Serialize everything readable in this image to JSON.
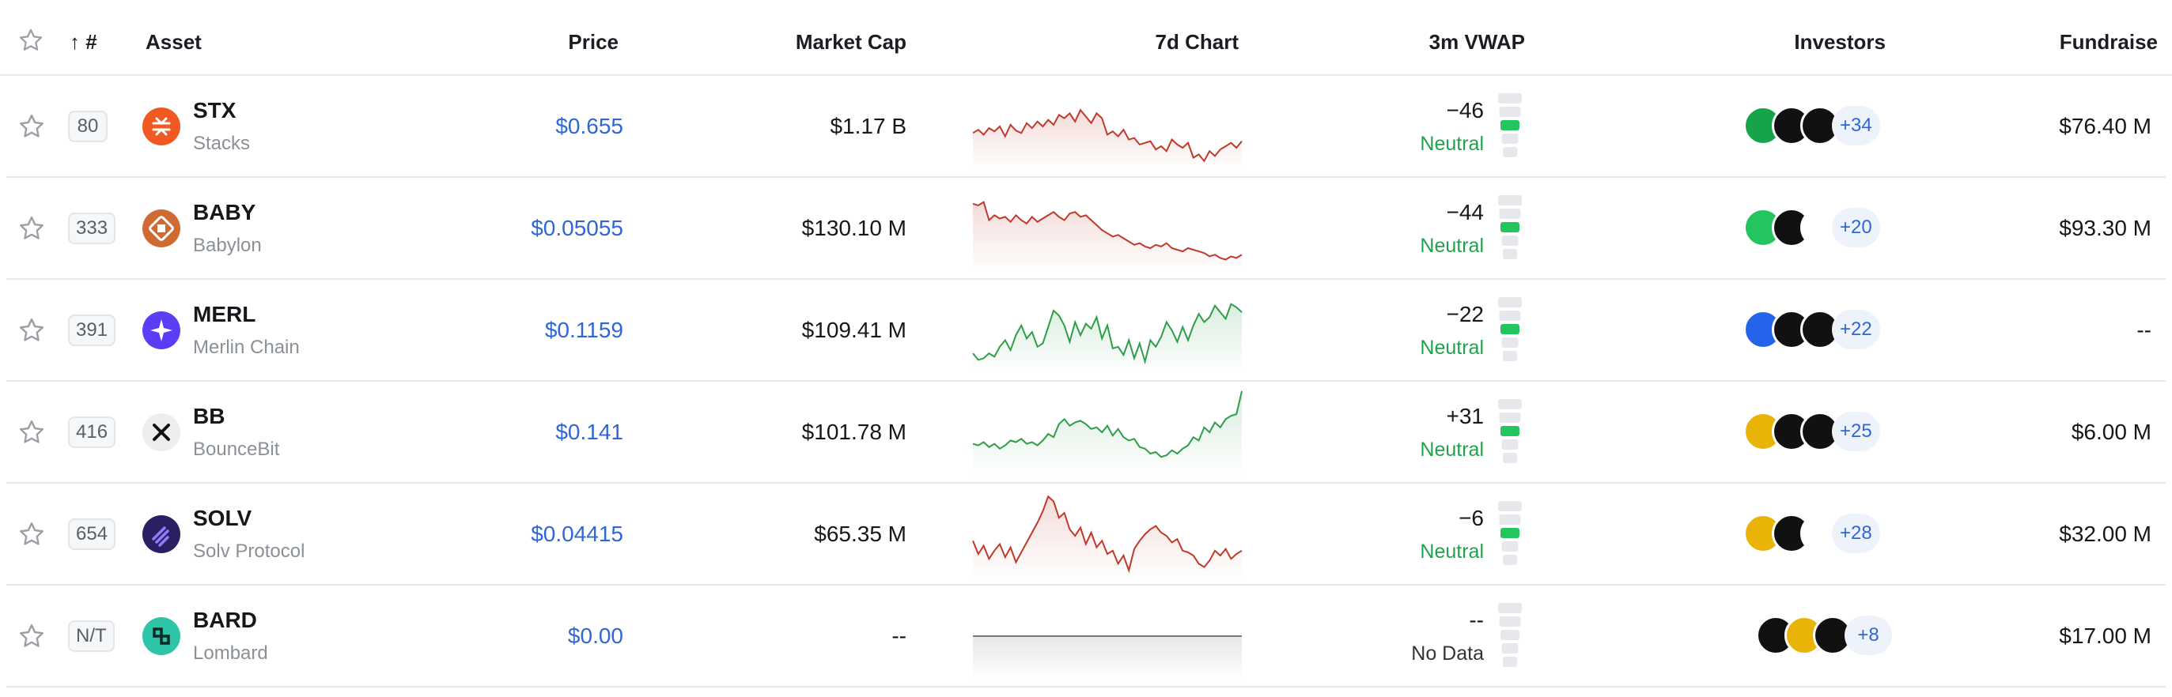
{
  "header": {
    "sort_label": "↑ #",
    "asset": "Asset",
    "price": "Price",
    "market_cap": "Market Cap",
    "chart": "7d Chart",
    "vwap": "3m VWAP",
    "investors": "Investors",
    "fundraise": "Fundraise"
  },
  "colors": {
    "price_link": "#2f66d8",
    "negative_line": "#c0392b",
    "positive_line": "#2e9e4a",
    "neutral_text": "#1fa34a",
    "bar_active": "#22c55e",
    "bar_inactive": "#e6e8eb"
  },
  "rows": [
    {
      "rank": "80",
      "symbol": "STX",
      "name": "Stacks",
      "icon": "stacks-logo",
      "logo_color": "#f05a22",
      "price": "$0.655",
      "market_cap": "$1.17 B",
      "vwap": "−46",
      "vwap_label": "Neutral",
      "vwap_level": 0.4,
      "investors_more": "+34",
      "fundraise": "$76.40 M",
      "trend": "down",
      "chart": [
        58,
        54,
        60,
        52,
        56,
        50,
        62,
        48,
        55,
        58,
        46,
        52,
        44,
        50,
        42,
        48,
        36,
        40,
        34,
        44,
        30,
        38,
        46,
        34,
        40,
        60,
        56,
        62,
        54,
        66,
        64,
        72,
        70,
        68,
        78,
        74,
        80,
        66,
        72,
        76,
        70,
        88,
        84,
        92,
        80,
        86,
        78,
        74,
        70,
        76,
        68
      ]
    },
    {
      "rank": "333",
      "symbol": "BABY",
      "name": "Babylon",
      "icon": "babylon-logo",
      "logo_color": "#cf6a33",
      "price": "$0.05055",
      "market_cap": "$130.10 M",
      "vwap": "−44",
      "vwap_label": "Neutral",
      "vwap_level": 0.4,
      "investors_more": "+20",
      "fundraise": "$93.30 M",
      "trend": "down",
      "chart": [
        20,
        22,
        18,
        40,
        34,
        38,
        36,
        42,
        34,
        40,
        44,
        36,
        42,
        38,
        34,
        30,
        36,
        40,
        32,
        30,
        36,
        34,
        40,
        46,
        52,
        56,
        60,
        58,
        62,
        66,
        70,
        68,
        72,
        74,
        70,
        72,
        68,
        74,
        76,
        78,
        74,
        76,
        78,
        80,
        84,
        82,
        86,
        88,
        84,
        86,
        82
      ]
    },
    {
      "rank": "391",
      "symbol": "MERL",
      "name": "Merlin Chain",
      "icon": "merlin-logo",
      "logo_color": "#5b3df5",
      "price": "$0.1159",
      "market_cap": "$109.41 M",
      "vwap": "−22",
      "vwap_label": "Neutral",
      "vwap_level": 0.4,
      "investors_more": "+22",
      "fundraise": "--",
      "trend": "up",
      "chart": [
        78,
        86,
        84,
        78,
        82,
        70,
        62,
        74,
        56,
        44,
        60,
        52,
        70,
        66,
        46,
        26,
        32,
        44,
        64,
        40,
        56,
        42,
        48,
        34,
        60,
        44,
        72,
        70,
        80,
        62,
        84,
        66,
        88,
        62,
        70,
        58,
        40,
        50,
        64,
        46,
        62,
        44,
        30,
        40,
        34,
        20,
        28,
        36,
        18,
        22,
        28
      ]
    },
    {
      "rank": "416",
      "symbol": "BB",
      "name": "BounceBit",
      "icon": "bouncebit-logo",
      "logo_color": "#eeeeee",
      "price": "$0.141",
      "market_cap": "$101.78 M",
      "vwap": "+31",
      "vwap_label": "Neutral",
      "vwap_level": 0.4,
      "investors_more": "+25",
      "fundraise": "$6.00 M",
      "trend": "up",
      "chart": [
        64,
        66,
        62,
        68,
        64,
        70,
        66,
        60,
        62,
        58,
        64,
        62,
        66,
        60,
        52,
        56,
        40,
        34,
        42,
        38,
        36,
        40,
        46,
        44,
        50,
        42,
        54,
        46,
        56,
        60,
        58,
        68,
        70,
        76,
        74,
        80,
        78,
        72,
        76,
        70,
        66,
        56,
        60,
        44,
        50,
        38,
        44,
        34,
        30,
        28,
        0
      ]
    },
    {
      "rank": "654",
      "symbol": "SOLV",
      "name": "Solv Protocol",
      "icon": "solv-logo",
      "logo_color": "#2a1f63",
      "price": "$0.04415",
      "market_cap": "$65.35 M",
      "vwap": "−6",
      "vwap_label": "Neutral",
      "vwap_level": 0.4,
      "investors_more": "+28",
      "fundraise": "$32.00 M",
      "trend": "down",
      "chart": [
        58,
        74,
        64,
        80,
        70,
        62,
        78,
        66,
        84,
        72,
        60,
        48,
        36,
        22,
        4,
        10,
        30,
        24,
        44,
        52,
        42,
        62,
        48,
        66,
        58,
        74,
        70,
        86,
        76,
        94,
        68,
        58,
        50,
        44,
        40,
        48,
        52,
        60,
        56,
        70,
        72,
        76,
        86,
        90,
        82,
        70,
        76,
        68,
        80,
        74,
        70
      ]
    },
    {
      "rank": "N/T",
      "symbol": "BARD",
      "name": "Lombard",
      "icon": "lombard-logo",
      "logo_color": "#2ec4a8",
      "price": "$0.00",
      "market_cap": "--",
      "vwap": "--",
      "vwap_label": "No Data",
      "vwap_level": 0,
      "investors_more": "+8",
      "fundraise": "$17.00 M",
      "trend": "flat",
      "chart": [
        50,
        50,
        50,
        50,
        50,
        50,
        50,
        50,
        50,
        50,
        50,
        50,
        50,
        50,
        50,
        50,
        50,
        50,
        50,
        50,
        50,
        50,
        50,
        50,
        50,
        50,
        50,
        50,
        50,
        50,
        50,
        50,
        50,
        50,
        50,
        50,
        50,
        50,
        50,
        50,
        50,
        50,
        50,
        50,
        50,
        50,
        50,
        50,
        50,
        50,
        50
      ]
    }
  ]
}
